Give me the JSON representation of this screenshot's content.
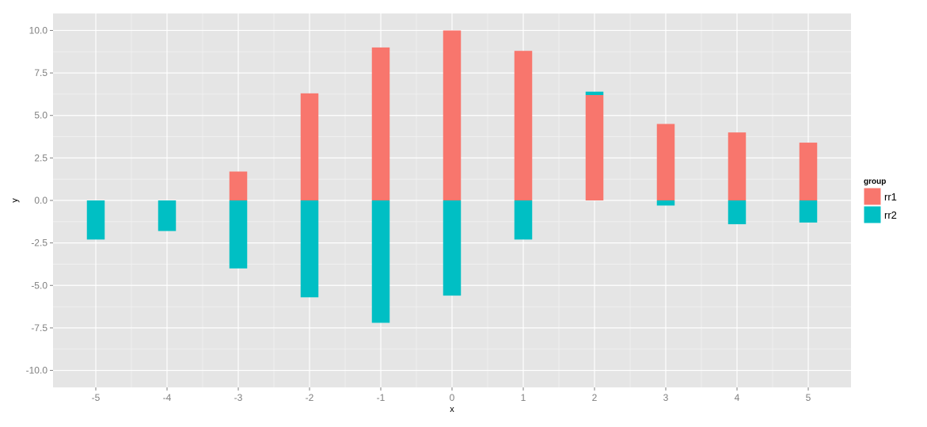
{
  "chart_data": {
    "type": "bar",
    "title": "",
    "xlabel": "x",
    "ylabel": "y",
    "xlim": [
      -5.6,
      5.6
    ],
    "ylim": [
      -11.0,
      11.0
    ],
    "x_ticks": [
      "-5",
      "-4",
      "-3",
      "-2",
      "-1",
      "0",
      "1",
      "2",
      "3",
      "4",
      "5"
    ],
    "y_ticks": [
      "10.0",
      "7.5",
      "5.0",
      "2.5",
      "0.0",
      "-2.5",
      "-5.0",
      "-7.5",
      "-10.0"
    ],
    "x": [
      -5,
      -4,
      -3,
      -2,
      -1,
      0,
      1,
      2,
      3,
      4,
      5
    ],
    "series": [
      {
        "name": "rr1",
        "color": "#F8766D",
        "values": [
          0,
          0,
          1.7,
          6.3,
          9.0,
          10.0,
          8.8,
          6.2,
          4.5,
          4.0,
          3.4
        ]
      },
      {
        "name": "rr2",
        "color": "#00BFC4",
        "values": [
          -2.3,
          -1.8,
          -4.0,
          -5.7,
          -7.2,
          -5.6,
          -2.3,
          0.2,
          -0.3,
          -1.4,
          -1.3
        ]
      }
    ],
    "legend": {
      "title": "group",
      "position": "right"
    },
    "grid": true,
    "panel_background": "#E5E5E5"
  }
}
